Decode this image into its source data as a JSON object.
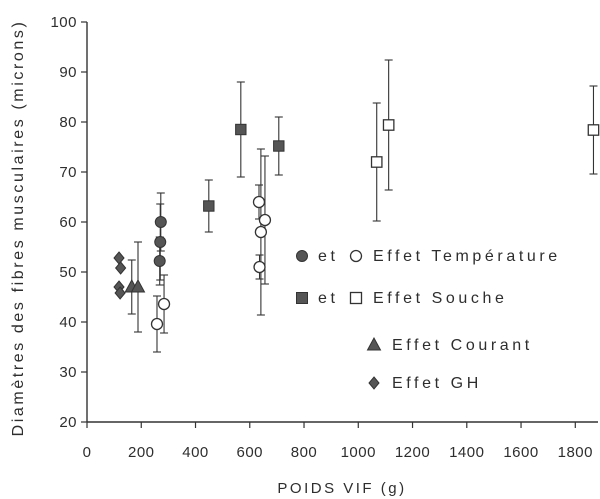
{
  "chart_data": {
    "type": "scatter",
    "xlabel": "POIDS VIF (g)",
    "ylabel": "Diamètres des fibres musculaires (microns)",
    "xlim": [
      0,
      1880
    ],
    "ylim": [
      20,
      100
    ],
    "x_ticks": [
      0,
      200,
      400,
      600,
      800,
      1000,
      1200,
      1400,
      1600,
      1800
    ],
    "y_ticks": [
      20,
      30,
      40,
      50,
      60,
      70,
      80,
      90,
      100
    ],
    "grid": false,
    "legend_position": "center-right",
    "legend_joiner": "et",
    "error_bars": true,
    "series": [
      {
        "name": "Effet Température",
        "marker": "circle",
        "points": [
          {
            "x": 272,
            "y": 60.0,
            "err": [
              54.2,
              65.8
            ],
            "filled": true
          },
          {
            "x": 270,
            "y": 56.0,
            "err": [
              48.4,
              63.6
            ],
            "filled": true
          },
          {
            "x": 268,
            "y": 52.2,
            "err": [
              47.4,
              57.0
            ],
            "filled": true
          },
          {
            "x": 258,
            "y": 39.6,
            "err": [
              34.0,
              45.2
            ],
            "filled": false
          },
          {
            "x": 284,
            "y": 43.6,
            "err": [
              37.8,
              49.4
            ],
            "filled": false
          },
          {
            "x": 634,
            "y": 64.0,
            "err": [
              60.6,
              67.4
            ],
            "filled": false
          },
          {
            "x": 641,
            "y": 58.0,
            "err": [
              41.4,
              74.6
            ],
            "filled": false
          },
          {
            "x": 656,
            "y": 60.4,
            "err": [
              47.6,
              73.2
            ],
            "filled": false
          },
          {
            "x": 636,
            "y": 51.0,
            "err": [
              48.6,
              53.4
            ],
            "filled": false
          }
        ]
      },
      {
        "name": "Effet Souche",
        "marker": "square",
        "points": [
          {
            "x": 449,
            "y": 63.2,
            "err": [
              58.0,
              68.4
            ],
            "filled": true
          },
          {
            "x": 567,
            "y": 78.5,
            "err": [
              69.0,
              88.0
            ],
            "filled": true
          },
          {
            "x": 707,
            "y": 75.2,
            "err": [
              69.4,
              81.0
            ],
            "filled": true
          },
          {
            "x": 1068,
            "y": 72.0,
            "err": [
              60.2,
              83.8
            ],
            "filled": false
          },
          {
            "x": 1112,
            "y": 79.4,
            "err": [
              66.4,
              92.4
            ],
            "filled": false
          },
          {
            "x": 1867,
            "y": 78.4,
            "err": [
              69.6,
              87.2
            ],
            "filled": false
          }
        ]
      },
      {
        "name": "Effet Courant",
        "marker": "triangle",
        "points": [
          {
            "x": 165,
            "y": 47.0,
            "err": [
              41.6,
              52.4
            ],
            "filled": true
          },
          {
            "x": 188,
            "y": 47.0,
            "err": [
              38.0,
              56.0
            ],
            "filled": true
          }
        ]
      },
      {
        "name": "Effet GH",
        "marker": "diamond",
        "points": [
          {
            "x": 118,
            "y": 52.8,
            "filled": true
          },
          {
            "x": 124,
            "y": 50.8,
            "filled": true
          },
          {
            "x": 118,
            "y": 47.0,
            "filled": true
          },
          {
            "x": 122,
            "y": 45.8,
            "filled": true
          }
        ]
      }
    ]
  },
  "colors": {
    "axis": "#333333",
    "text": "#2e2e2e",
    "marker_fill": "#555555",
    "background": "#ffffff"
  }
}
